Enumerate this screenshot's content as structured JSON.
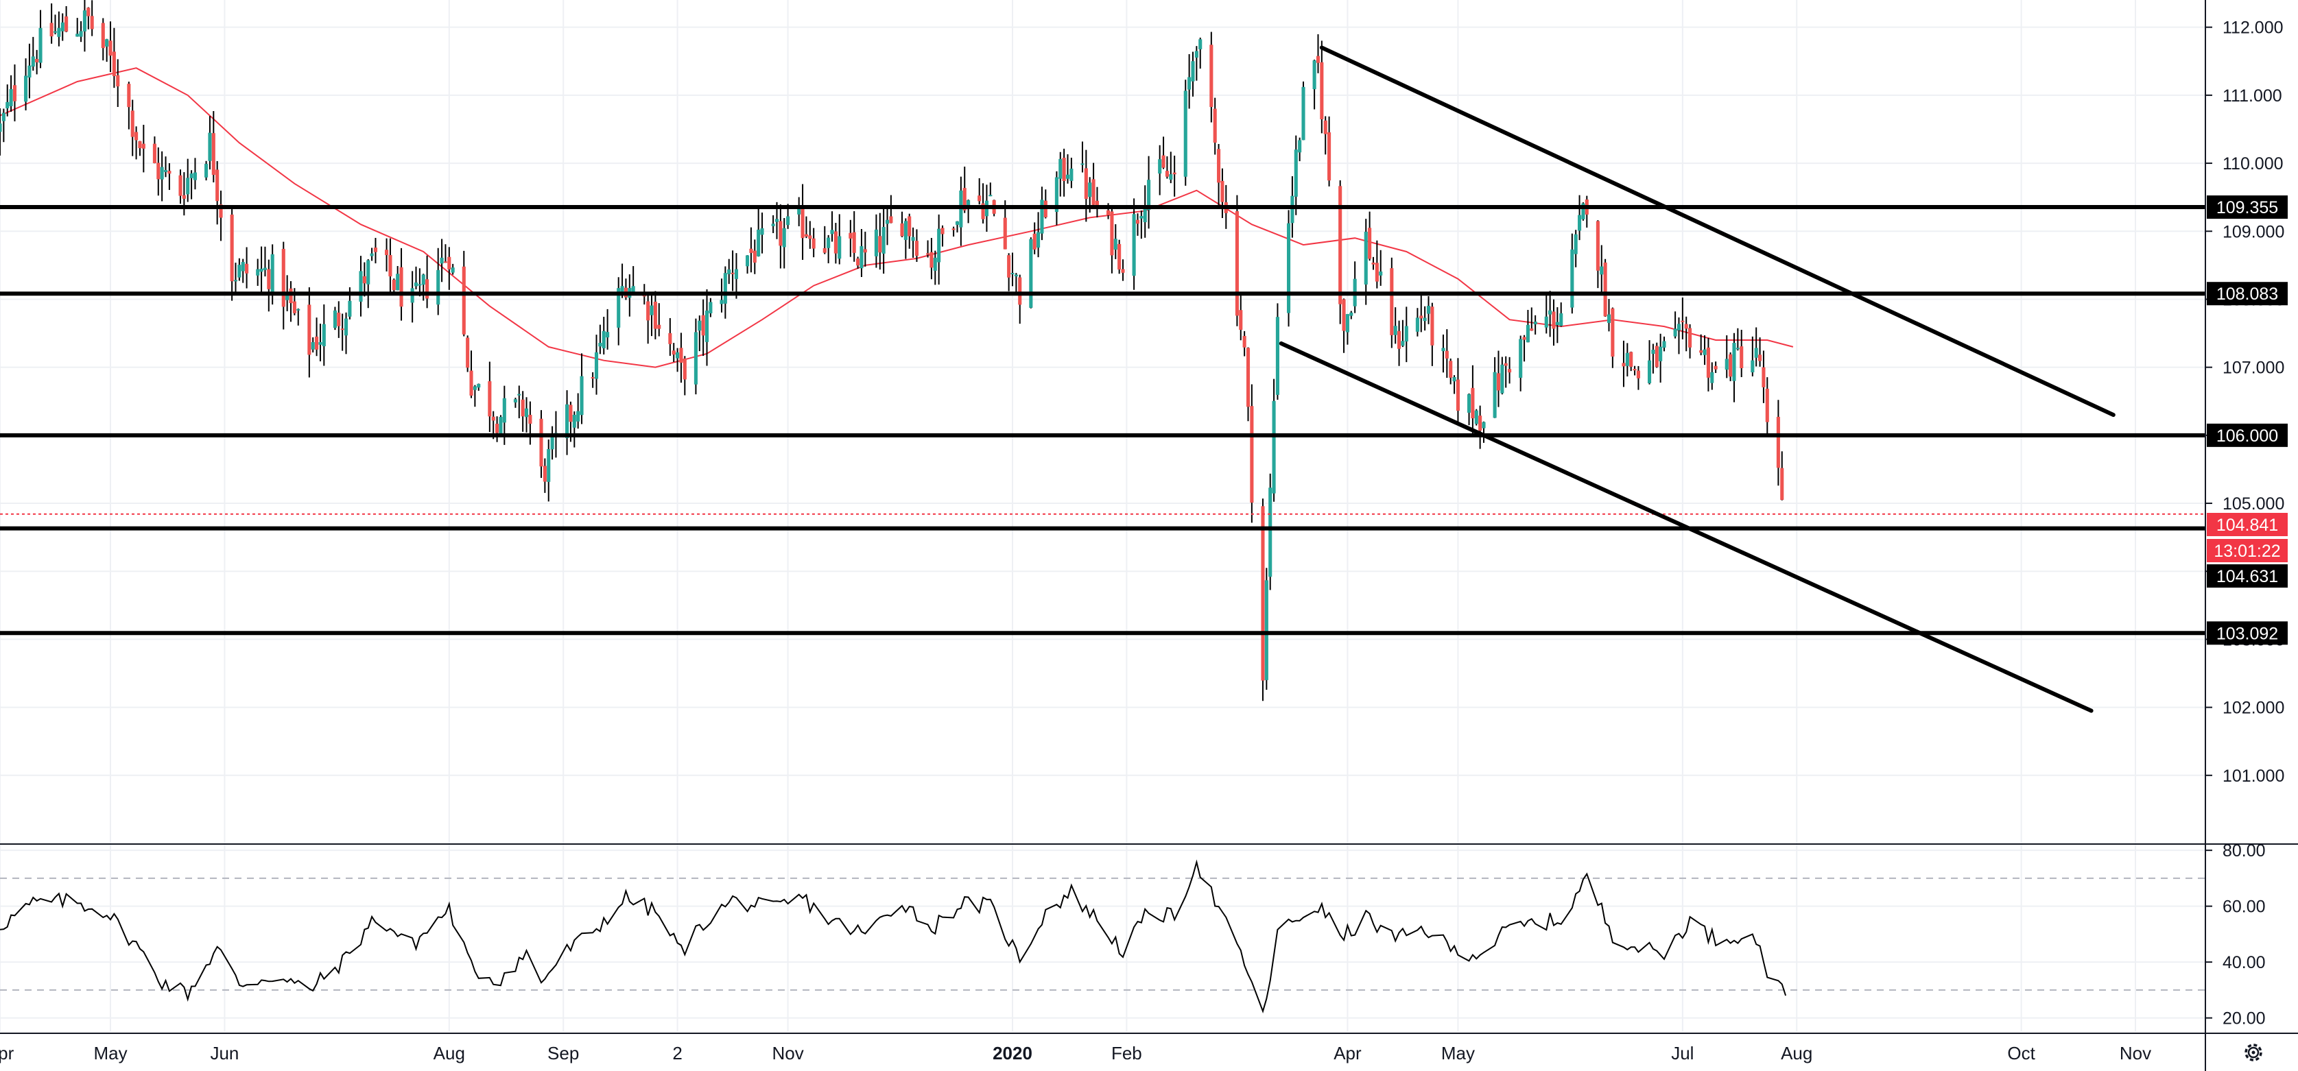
{
  "chart_data": [
    {
      "type": "candlestick",
      "title": "",
      "x_axis": {
        "ticks": [
          "Apr",
          "May",
          "Jun",
          "Aug",
          "Sep",
          "2",
          "Nov",
          "2020",
          "Feb",
          "Apr",
          "May",
          "Jul",
          "Aug",
          "Oct",
          "Nov"
        ],
        "range": [
          "2019-04-01",
          "2020-11-20"
        ]
      },
      "y_axis": {
        "position": "right",
        "range": [
          100.0,
          112.4
        ],
        "ticks": [
          "101.000",
          "102.000",
          "103.000",
          "104.000",
          "105.000",
          "106.000",
          "107.000",
          "108.000",
          "109.000",
          "110.000",
          "111.000",
          "112.000"
        ]
      },
      "grid": true,
      "moving_average": {
        "color": "#f23645",
        "points": [
          [
            "2019-04-01",
            110.7
          ],
          [
            "2019-04-22",
            111.2
          ],
          [
            "2019-05-08",
            111.4
          ],
          [
            "2019-05-22",
            111.0
          ],
          [
            "2019-06-05",
            110.3
          ],
          [
            "2019-06-20",
            109.7
          ],
          [
            "2019-07-08",
            109.1
          ],
          [
            "2019-07-25",
            108.7
          ],
          [
            "2019-08-12",
            107.9
          ],
          [
            "2019-08-28",
            107.3
          ],
          [
            "2019-09-12",
            107.1
          ],
          [
            "2019-09-26",
            107.0
          ],
          [
            "2019-10-10",
            107.2
          ],
          [
            "2019-10-25",
            107.7
          ],
          [
            "2019-11-08",
            108.2
          ],
          [
            "2019-11-22",
            108.5
          ],
          [
            "2019-12-06",
            108.6
          ],
          [
            "2019-12-20",
            108.8
          ],
          [
            "2020-01-06",
            109.0
          ],
          [
            "2020-01-22",
            109.2
          ],
          [
            "2020-02-06",
            109.3
          ],
          [
            "2020-02-20",
            109.6
          ],
          [
            "2020-03-06",
            109.1
          ],
          [
            "2020-03-20",
            108.8
          ],
          [
            "2020-04-03",
            108.9
          ],
          [
            "2020-04-17",
            108.7
          ],
          [
            "2020-05-01",
            108.3
          ],
          [
            "2020-05-15",
            107.7
          ],
          [
            "2020-05-29",
            107.6
          ],
          [
            "2020-06-12",
            107.7
          ],
          [
            "2020-06-26",
            107.6
          ],
          [
            "2020-07-10",
            107.4
          ],
          [
            "2020-07-24",
            107.4
          ],
          [
            "2020-07-31",
            107.3
          ]
        ]
      },
      "candle_path": [
        [
          "2019-04-01",
          110.5
        ],
        [
          "2019-04-08",
          111.5
        ],
        [
          "2019-04-15",
          111.9
        ],
        [
          "2019-04-25",
          112.1
        ],
        [
          "2019-05-03",
          111.3
        ],
        [
          "2019-05-10",
          110.1
        ],
        [
          "2019-05-20",
          109.6
        ],
        [
          "2019-05-28",
          110.3
        ],
        [
          "2019-06-03",
          108.4
        ],
        [
          "2019-06-14",
          108.4
        ],
        [
          "2019-06-24",
          107.3
        ],
        [
          "2019-07-03",
          107.8
        ],
        [
          "2019-07-12",
          108.6
        ],
        [
          "2019-07-22",
          107.9
        ],
        [
          "2019-08-01",
          108.7
        ],
        [
          "2019-08-07",
          106.8
        ],
        [
          "2019-08-14",
          106.3
        ],
        [
          "2019-08-22",
          106.4
        ],
        [
          "2019-08-26",
          105.4
        ],
        [
          "2019-09-02",
          106.2
        ],
        [
          "2019-09-10",
          107.1
        ],
        [
          "2019-09-18",
          108.3
        ],
        [
          "2019-09-26",
          107.8
        ],
        [
          "2019-10-03",
          106.9
        ],
        [
          "2019-10-10",
          107.7
        ],
        [
          "2019-10-17",
          108.5
        ],
        [
          "2019-10-28",
          108.9
        ],
        [
          "2019-11-05",
          109.1
        ],
        [
          "2019-11-12",
          108.8
        ],
        [
          "2019-11-22",
          108.6
        ],
        [
          "2019-12-02",
          109.2
        ],
        [
          "2019-12-10",
          108.6
        ],
        [
          "2019-12-18",
          109.5
        ],
        [
          "2019-12-26",
          109.4
        ],
        [
          "2020-01-03",
          108.1
        ],
        [
          "2020-01-10",
          109.4
        ],
        [
          "2020-01-17",
          110.1
        ],
        [
          "2020-01-24",
          109.3
        ],
        [
          "2020-01-31",
          108.6
        ],
        [
          "2020-02-07",
          109.8
        ],
        [
          "2020-02-14",
          109.8
        ],
        [
          "2020-02-20",
          111.9
        ],
        [
          "2020-02-27",
          109.6
        ],
        [
          "2020-03-04",
          107.2
        ],
        [
          "2020-03-09",
          102.4
        ],
        [
          "2020-03-13",
          107.9
        ],
        [
          "2020-03-20",
          110.9
        ],
        [
          "2020-03-24",
          111.4
        ],
        [
          "2020-03-31",
          107.6
        ],
        [
          "2020-04-06",
          108.9
        ],
        [
          "2020-04-14",
          107.4
        ],
        [
          "2020-04-22",
          107.8
        ],
        [
          "2020-04-30",
          106.6
        ],
        [
          "2020-05-07",
          106.3
        ],
        [
          "2020-05-15",
          107.1
        ],
        [
          "2020-05-22",
          107.6
        ],
        [
          "2020-05-29",
          107.8
        ],
        [
          "2020-06-05",
          109.5
        ],
        [
          "2020-06-12",
          107.4
        ],
        [
          "2020-06-19",
          106.9
        ],
        [
          "2020-06-26",
          107.2
        ],
        [
          "2020-07-03",
          107.5
        ],
        [
          "2020-07-10",
          106.9
        ],
        [
          "2020-07-17",
          107.2
        ],
        [
          "2020-07-22",
          107.1
        ],
        [
          "2020-07-24",
          106.0
        ],
        [
          "2020-07-29",
          104.9
        ]
      ],
      "horizontal_levels": [
        {
          "value": 109.355,
          "label": "109.355"
        },
        {
          "value": 108.083,
          "label": "108.083"
        },
        {
          "value": 106.0,
          "label": "106.000"
        },
        {
          "value": 104.631,
          "label": "104.631"
        },
        {
          "value": 103.092,
          "label": "103.092"
        }
      ],
      "trend_lines": [
        {
          "from": [
            "2020-03-25",
            111.7
          ],
          "to": [
            "2020-10-26",
            106.3
          ]
        },
        {
          "from": [
            "2020-03-14",
            107.35
          ],
          "to": [
            "2020-10-20",
            101.95
          ]
        }
      ],
      "last_price": {
        "value": 104.841,
        "label": "104.841",
        "countdown": "13:01:22",
        "color": "#f23645"
      },
      "colors": {
        "up": "#26a69a",
        "down": "#ef5350",
        "wick": "#000000",
        "levels": "#000000"
      }
    },
    {
      "type": "line",
      "title": "",
      "y_axis": {
        "position": "right",
        "range": [
          15,
          82
        ],
        "ticks": [
          "20.00",
          "40.00",
          "60.00",
          "80.00"
        ]
      },
      "bands": [
        70,
        30
      ],
      "series": [
        {
          "color": "#000000",
          "points": [
            [
              "2019-04-01",
              53
            ],
            [
              "2019-04-10",
              61
            ],
            [
              "2019-04-20",
              62
            ],
            [
              "2019-04-30",
              58
            ],
            [
              "2019-05-08",
              46
            ],
            [
              "2019-05-15",
              33
            ],
            [
              "2019-05-22",
              29
            ],
            [
              "2019-05-30",
              45
            ],
            [
              "2019-06-05",
              32
            ],
            [
              "2019-06-14",
              35
            ],
            [
              "2019-06-24",
              30
            ],
            [
              "2019-07-03",
              40
            ],
            [
              "2019-07-12",
              56
            ],
            [
              "2019-07-22",
              46
            ],
            [
              "2019-08-01",
              59
            ],
            [
              "2019-08-07",
              38
            ],
            [
              "2019-08-14",
              33
            ],
            [
              "2019-08-22",
              43
            ],
            [
              "2019-08-26",
              33
            ],
            [
              "2019-09-02",
              44
            ],
            [
              "2019-09-10",
              52
            ],
            [
              "2019-09-18",
              63
            ],
            [
              "2019-09-26",
              58
            ],
            [
              "2019-10-03",
              44
            ],
            [
              "2019-10-10",
              55
            ],
            [
              "2019-10-17",
              62
            ],
            [
              "2019-10-28",
              59
            ],
            [
              "2019-11-05",
              63
            ],
            [
              "2019-11-12",
              55
            ],
            [
              "2019-11-22",
              50
            ],
            [
              "2019-12-02",
              62
            ],
            [
              "2019-12-10",
              52
            ],
            [
              "2019-12-18",
              61
            ],
            [
              "2019-12-26",
              60
            ],
            [
              "2020-01-03",
              41
            ],
            [
              "2020-01-10",
              58
            ],
            [
              "2020-01-17",
              65
            ],
            [
              "2020-01-24",
              55
            ],
            [
              "2020-01-31",
              44
            ],
            [
              "2020-02-07",
              58
            ],
            [
              "2020-02-14",
              56
            ],
            [
              "2020-02-20",
              76
            ],
            [
              "2020-02-27",
              56
            ],
            [
              "2020-03-04",
              40
            ],
            [
              "2020-03-09",
              20
            ],
            [
              "2020-03-13",
              50
            ],
            [
              "2020-03-20",
              57
            ],
            [
              "2020-03-24",
              60
            ],
            [
              "2020-03-31",
              49
            ],
            [
              "2020-04-06",
              56
            ],
            [
              "2020-04-14",
              48
            ],
            [
              "2020-04-22",
              52
            ],
            [
              "2020-04-30",
              44
            ],
            [
              "2020-05-07",
              43
            ],
            [
              "2020-05-15",
              52
            ],
            [
              "2020-05-22",
              54
            ],
            [
              "2020-05-29",
              55
            ],
            [
              "2020-06-05",
              70
            ],
            [
              "2020-06-12",
              50
            ],
            [
              "2020-06-19",
              45
            ],
            [
              "2020-06-26",
              43
            ],
            [
              "2020-07-03",
              55
            ],
            [
              "2020-07-10",
              48
            ],
            [
              "2020-07-17",
              50
            ],
            [
              "2020-07-22",
              47
            ],
            [
              "2020-07-24",
              36
            ],
            [
              "2020-07-29",
              28
            ]
          ]
        }
      ]
    }
  ],
  "ui": {
    "settings_icon": "gear-icon"
  }
}
